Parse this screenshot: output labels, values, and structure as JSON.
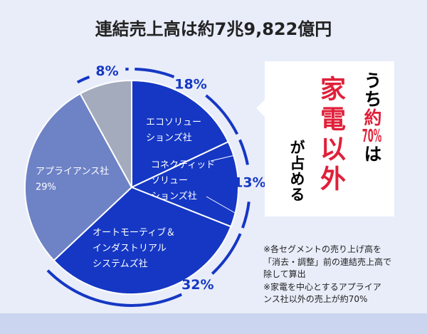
{
  "chart_data": {
    "type": "pie",
    "title": "連結売上高は約7兆9,822億円",
    "categories": [
      [
        "エコソリュー",
        "ションズ社"
      ],
      [
        "コネクティッド",
        "ソリュー",
        "ションズ社"
      ],
      [
        "オートモーティブ＆",
        "インダストリアル",
        "システムズ社"
      ],
      [
        "アプライアンス社"
      ],
      null
    ],
    "values": [
      18,
      13,
      32,
      29,
      8
    ],
    "value_labels": [
      "18%",
      "13%",
      "32%",
      "29%",
      "8%"
    ],
    "colors": [
      "#1537c4",
      "#1537c4",
      "#1537c4",
      "#6e82c6",
      "#a3abbd"
    ]
  },
  "callout": {
    "column1": [
      "うち",
      "約70%",
      "は"
    ],
    "column2": "家電以外",
    "column3": "が占める"
  },
  "notes": [
    "※各セグメントの売り上げ高を",
    "「消去・調整」前の連結売上高で",
    "除して算出",
    "※家電を中心とするアプライア",
    "ンス社以外の売上が約70%"
  ]
}
